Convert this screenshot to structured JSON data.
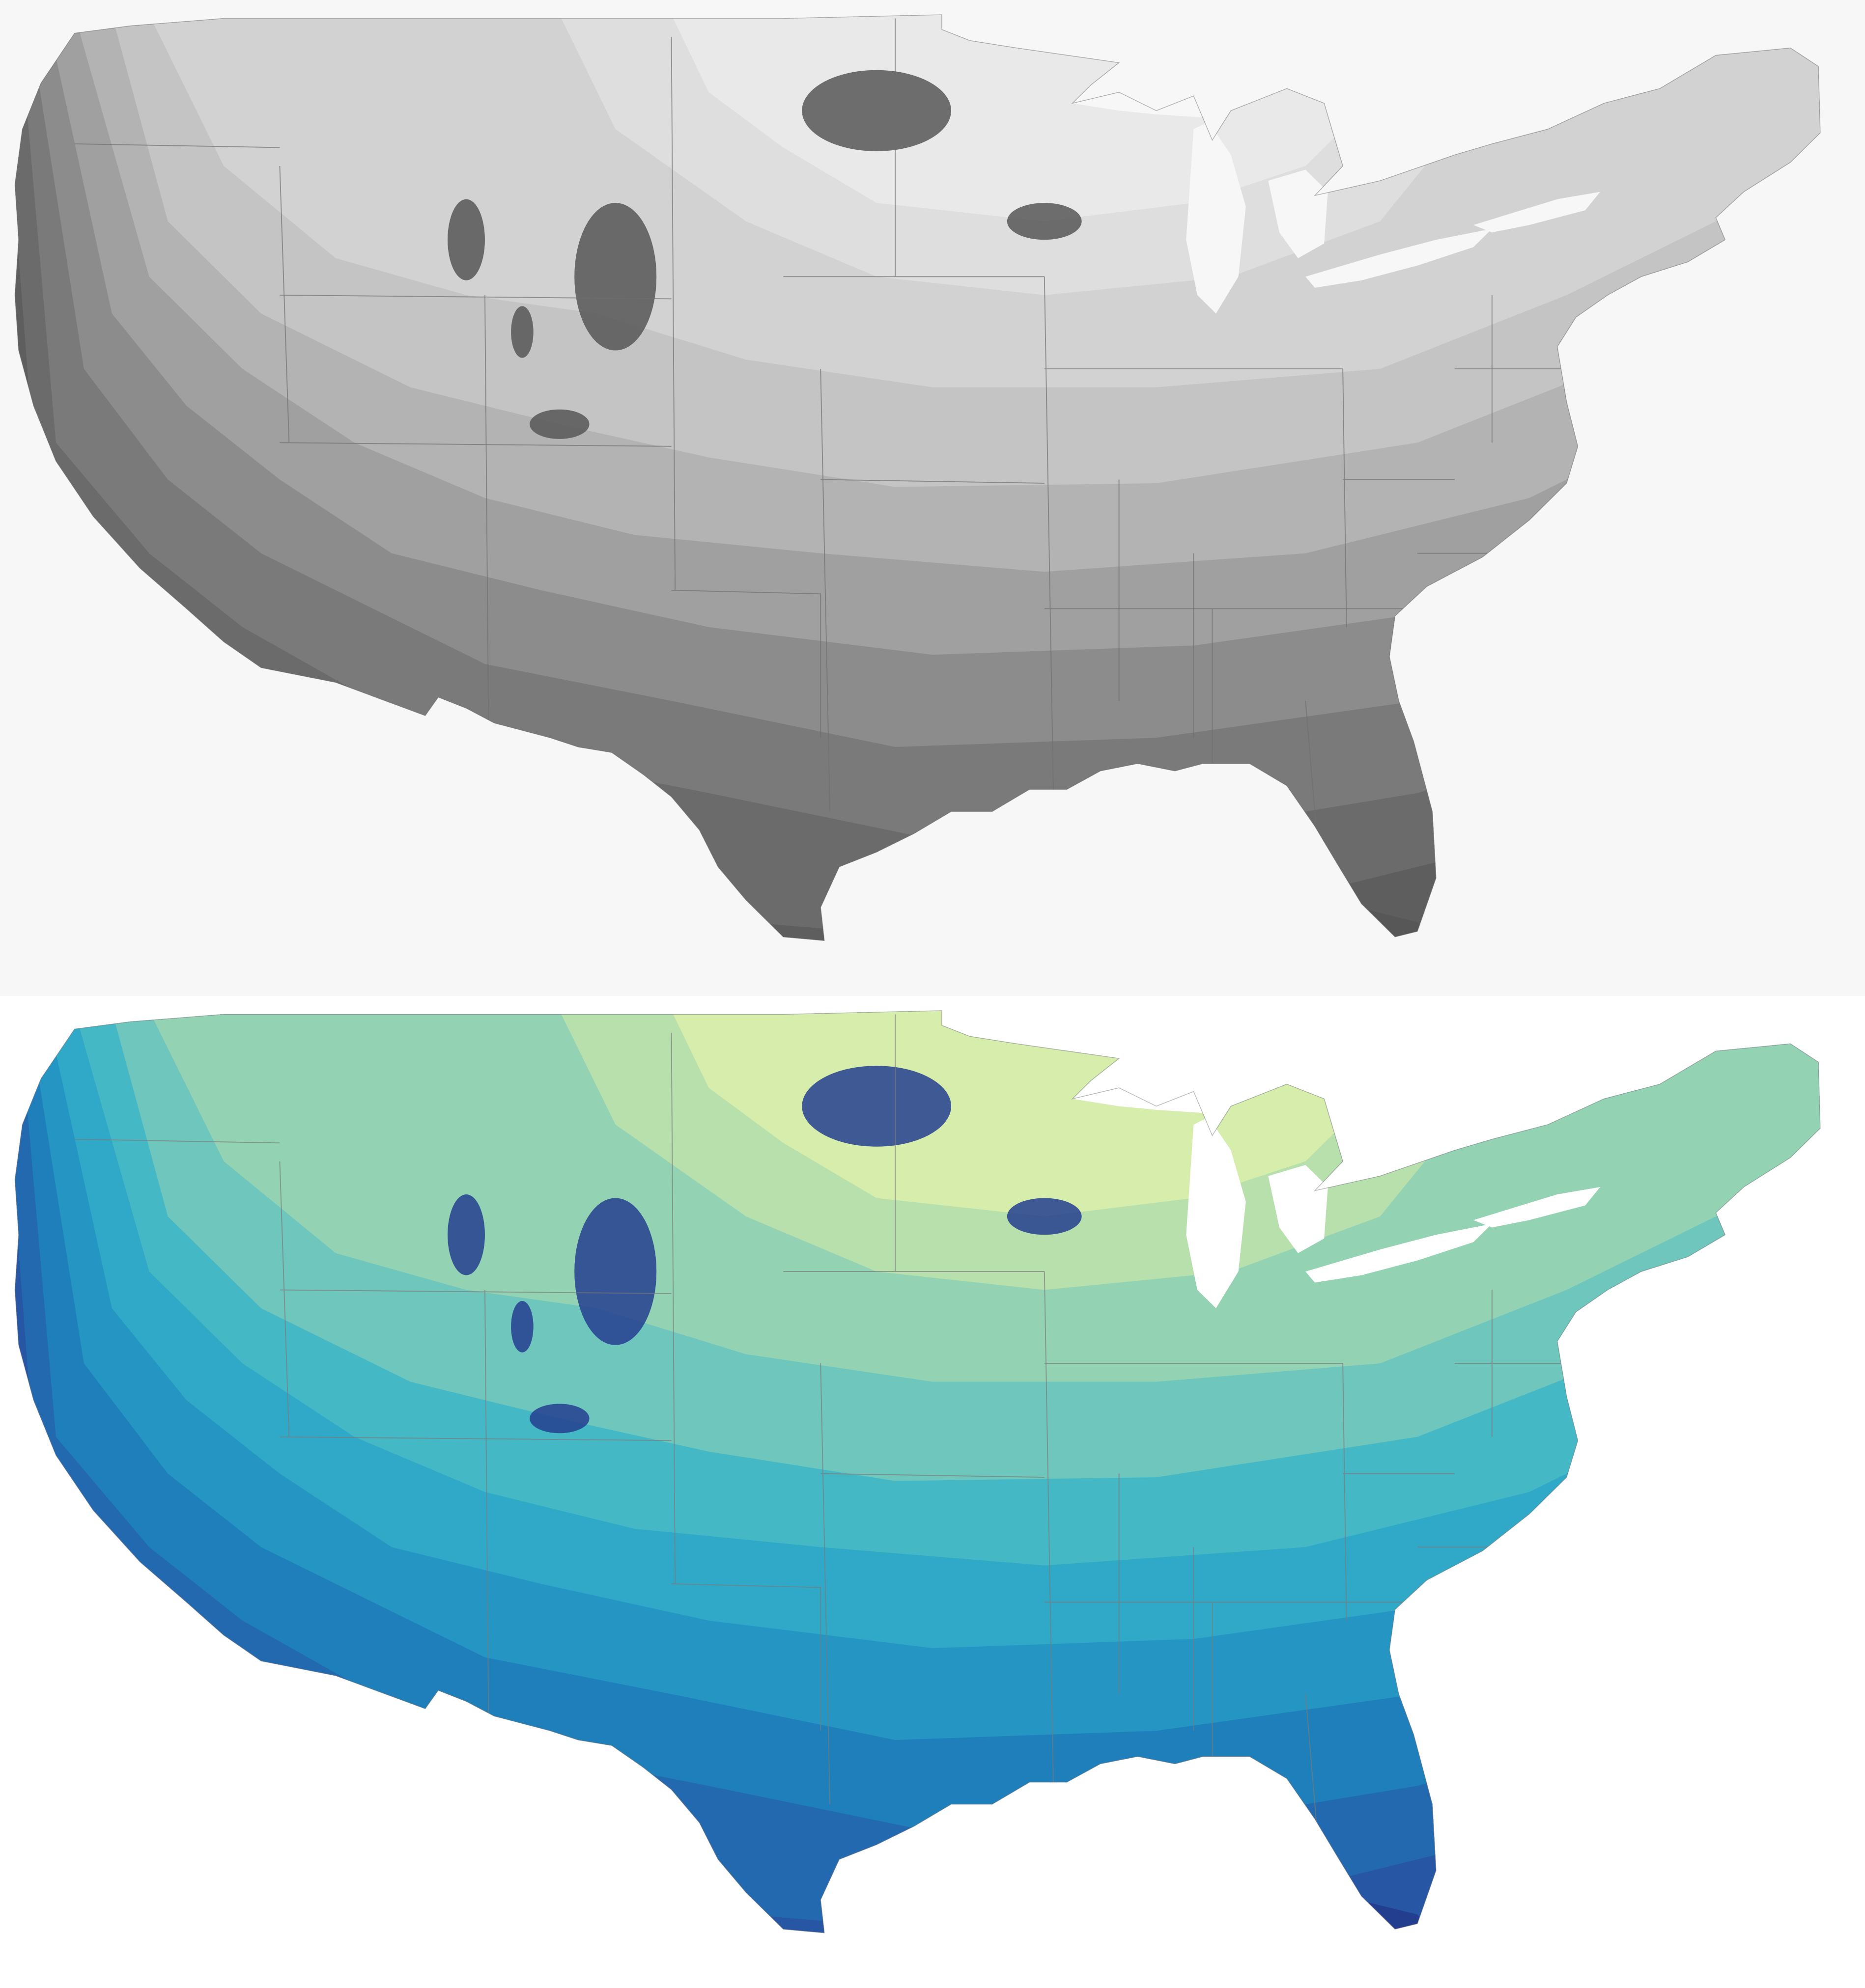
{
  "panels": [
    {
      "id": "grayscale",
      "background": "#f7f7f7",
      "bands": [
        "#575757",
        "#5e5e5e",
        "#6b6b6b",
        "#7a7a7a",
        "#8c8c8c",
        "#a0a0a0",
        "#b3b3b3",
        "#c4c4c4",
        "#d2d2d2",
        "#dedede",
        "#e9e9e9",
        "#f1f1f1"
      ],
      "border_color": "#6f6f6f",
      "lake_color": "#f7f7f7"
    },
    {
      "id": "color",
      "background": "#ffffff",
      "bands": [
        "#243e8f",
        "#2656a4",
        "#2369b0",
        "#1e7fbb",
        "#2596c4",
        "#30a9c8",
        "#45b8c6",
        "#6ec6bd",
        "#93d3b4",
        "#b7e0ad",
        "#d6edac",
        "#eef7b3"
      ],
      "border_color": "#7a7a7a",
      "lake_color": "#ffffff"
    }
  ]
}
